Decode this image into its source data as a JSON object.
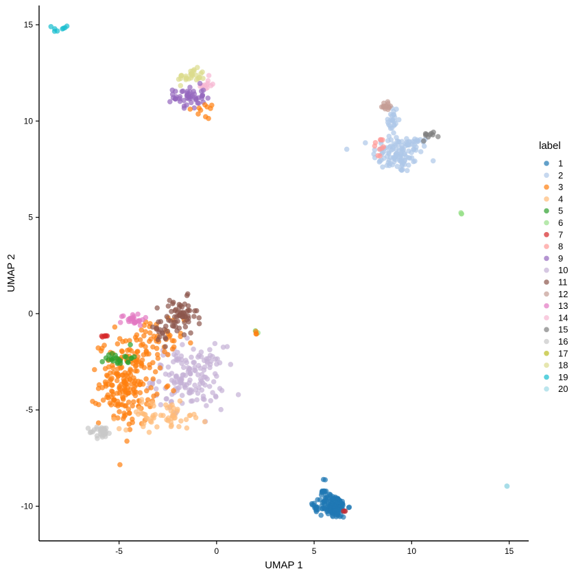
{
  "chart_data": {
    "type": "scatter",
    "xlabel": "UMAP 1",
    "ylabel": "UMAP 2",
    "xlim": [
      -9.1,
      16.0
    ],
    "ylim": [
      -11.8,
      16.0
    ],
    "xticks": [
      -5,
      0,
      5,
      10,
      15
    ],
    "yticks": [
      -10,
      -5,
      0,
      5,
      10,
      15
    ],
    "grid": false,
    "legend": {
      "title": "label",
      "position": "right",
      "entries": [
        "1",
        "2",
        "3",
        "4",
        "5",
        "6",
        "7",
        "8",
        "9",
        "10",
        "11",
        "12",
        "13",
        "14",
        "15",
        "16",
        "17",
        "18",
        "19",
        "20"
      ]
    },
    "palette": {
      "1": "#1f77b4",
      "2": "#aec7e8",
      "3": "#ff7f0e",
      "4": "#ffbb78",
      "5": "#2ca02c",
      "6": "#98df8a",
      "7": "#d62728",
      "8": "#ff9896",
      "9": "#9467bd",
      "10": "#c5b0d5",
      "11": "#8c564b",
      "12": "#c49c94",
      "13": "#e377c2",
      "14": "#f7b6d2",
      "15": "#7f7f7f",
      "16": "#c7c7c7",
      "17": "#bcbd22",
      "18": "#dbdb8d",
      "19": "#17becf",
      "20": "#9edae5"
    },
    "clusters": [
      {
        "label": "2",
        "center": [
          9.3,
          8.3
        ],
        "spread": [
          0.65,
          0.5
        ],
        "n": 110
      },
      {
        "label": "2",
        "center": [
          9.0,
          10.0
        ],
        "spread": [
          0.15,
          0.45
        ],
        "n": 25
      },
      {
        "label": "2",
        "center": [
          10.3,
          8.9
        ],
        "spread": [
          0.45,
          0.12
        ],
        "n": 12
      },
      {
        "label": "12",
        "center": [
          8.7,
          10.8
        ],
        "spread": [
          0.15,
          0.15
        ],
        "n": 14
      },
      {
        "label": "8",
        "center": [
          8.35,
          8.6
        ],
        "spread": [
          0.15,
          0.3
        ],
        "n": 10
      },
      {
        "label": "15",
        "center": [
          11.0,
          9.3
        ],
        "spread": [
          0.25,
          0.08
        ],
        "n": 10
      },
      {
        "label": "6",
        "center": [
          12.55,
          5.2
        ],
        "spread": [
          0.03,
          0.03
        ],
        "n": 3
      },
      {
        "label": "20",
        "center": [
          14.9,
          -8.95
        ],
        "spread": [
          0.03,
          0.03
        ],
        "n": 2
      },
      {
        "label": "19",
        "center": [
          -8.0,
          14.8
        ],
        "spread": [
          0.2,
          0.1
        ],
        "n": 8
      },
      {
        "label": "18",
        "center": [
          -1.3,
          12.3
        ],
        "spread": [
          0.35,
          0.2
        ],
        "n": 30
      },
      {
        "label": "14",
        "center": [
          -0.55,
          11.9
        ],
        "spread": [
          0.25,
          0.2
        ],
        "n": 12
      },
      {
        "label": "9",
        "center": [
          -1.4,
          11.25
        ],
        "spread": [
          0.4,
          0.3
        ],
        "n": 50
      },
      {
        "label": "3",
        "center": [
          -0.6,
          10.6
        ],
        "spread": [
          0.3,
          0.45
        ],
        "n": 10
      },
      {
        "label": "6",
        "center": [
          2.0,
          -1.0
        ],
        "spread": [
          0.06,
          0.06
        ],
        "n": 3
      },
      {
        "label": "3",
        "center": [
          2.0,
          -1.05
        ],
        "spread": [
          0.06,
          0.06
        ],
        "n": 3
      },
      {
        "label": "10",
        "center": [
          -1.4,
          -3.3
        ],
        "spread": [
          0.9,
          0.8
        ],
        "n": 160
      },
      {
        "label": "3",
        "center": [
          -4.6,
          -3.6
        ],
        "spread": [
          0.7,
          1.1
        ],
        "n": 200
      },
      {
        "label": "3",
        "center": [
          -3.3,
          -1.6
        ],
        "spread": [
          0.8,
          0.8
        ],
        "n": 55
      },
      {
        "label": "4",
        "center": [
          -2.7,
          -5.3
        ],
        "spread": [
          1.1,
          0.35
        ],
        "n": 60
      },
      {
        "label": "11",
        "center": [
          -1.9,
          -0.2
        ],
        "spread": [
          0.45,
          0.5
        ],
        "n": 60
      },
      {
        "label": "11",
        "center": [
          -3.0,
          -0.8
        ],
        "spread": [
          0.4,
          0.35
        ],
        "n": 15
      },
      {
        "label": "13",
        "center": [
          -4.3,
          -0.3
        ],
        "spread": [
          0.3,
          0.15
        ],
        "n": 25
      },
      {
        "label": "5",
        "center": [
          -5.0,
          -2.3
        ],
        "spread": [
          0.35,
          0.2
        ],
        "n": 25
      },
      {
        "label": "7",
        "center": [
          -5.7,
          -1.15
        ],
        "spread": [
          0.12,
          0.06
        ],
        "n": 6
      },
      {
        "label": "16",
        "center": [
          -5.9,
          -6.15
        ],
        "spread": [
          0.3,
          0.15
        ],
        "n": 30
      },
      {
        "label": "1",
        "center": [
          6.0,
          -10.0
        ],
        "spread": [
          0.35,
          0.3
        ],
        "n": 140
      },
      {
        "label": "1",
        "center": [
          5.5,
          -9.0
        ],
        "spread": [
          0.1,
          0.35
        ],
        "n": 10
      },
      {
        "label": "1",
        "center": [
          5.0,
          -10.1
        ],
        "spread": [
          0.1,
          0.15
        ],
        "n": 8
      },
      {
        "label": "7",
        "center": [
          6.6,
          -10.3
        ],
        "spread": [
          0.06,
          0.06
        ],
        "n": 2
      }
    ]
  }
}
